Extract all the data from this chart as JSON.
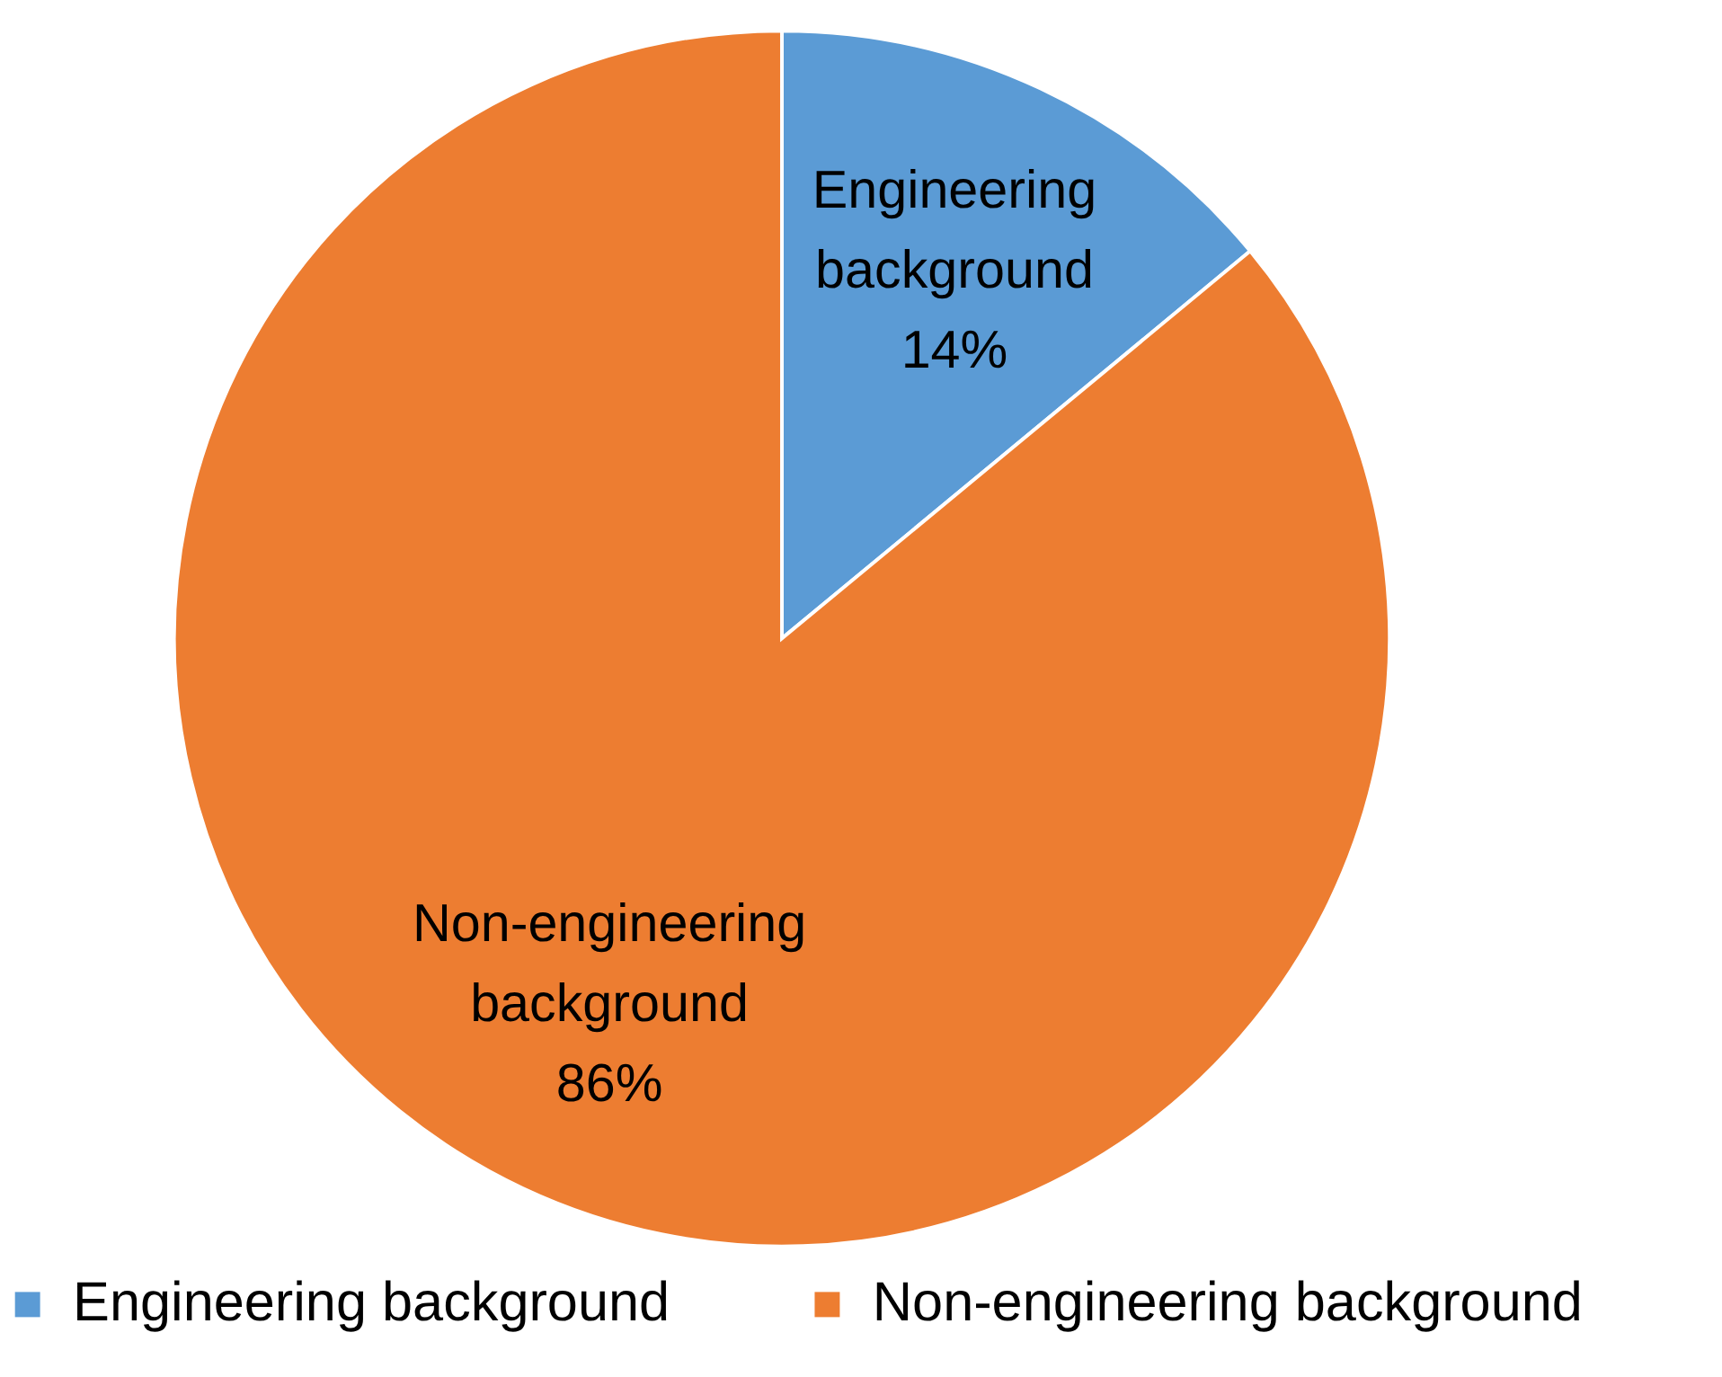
{
  "chart_data": {
    "type": "pie",
    "categories": [
      "Engineering background",
      "Non-engineering background"
    ],
    "values": [
      14,
      86
    ],
    "colors": [
      "#5b9bd5",
      "#ed7d31"
    ],
    "value_labels": [
      "14%",
      "86%"
    ],
    "legend": "bottom"
  }
}
